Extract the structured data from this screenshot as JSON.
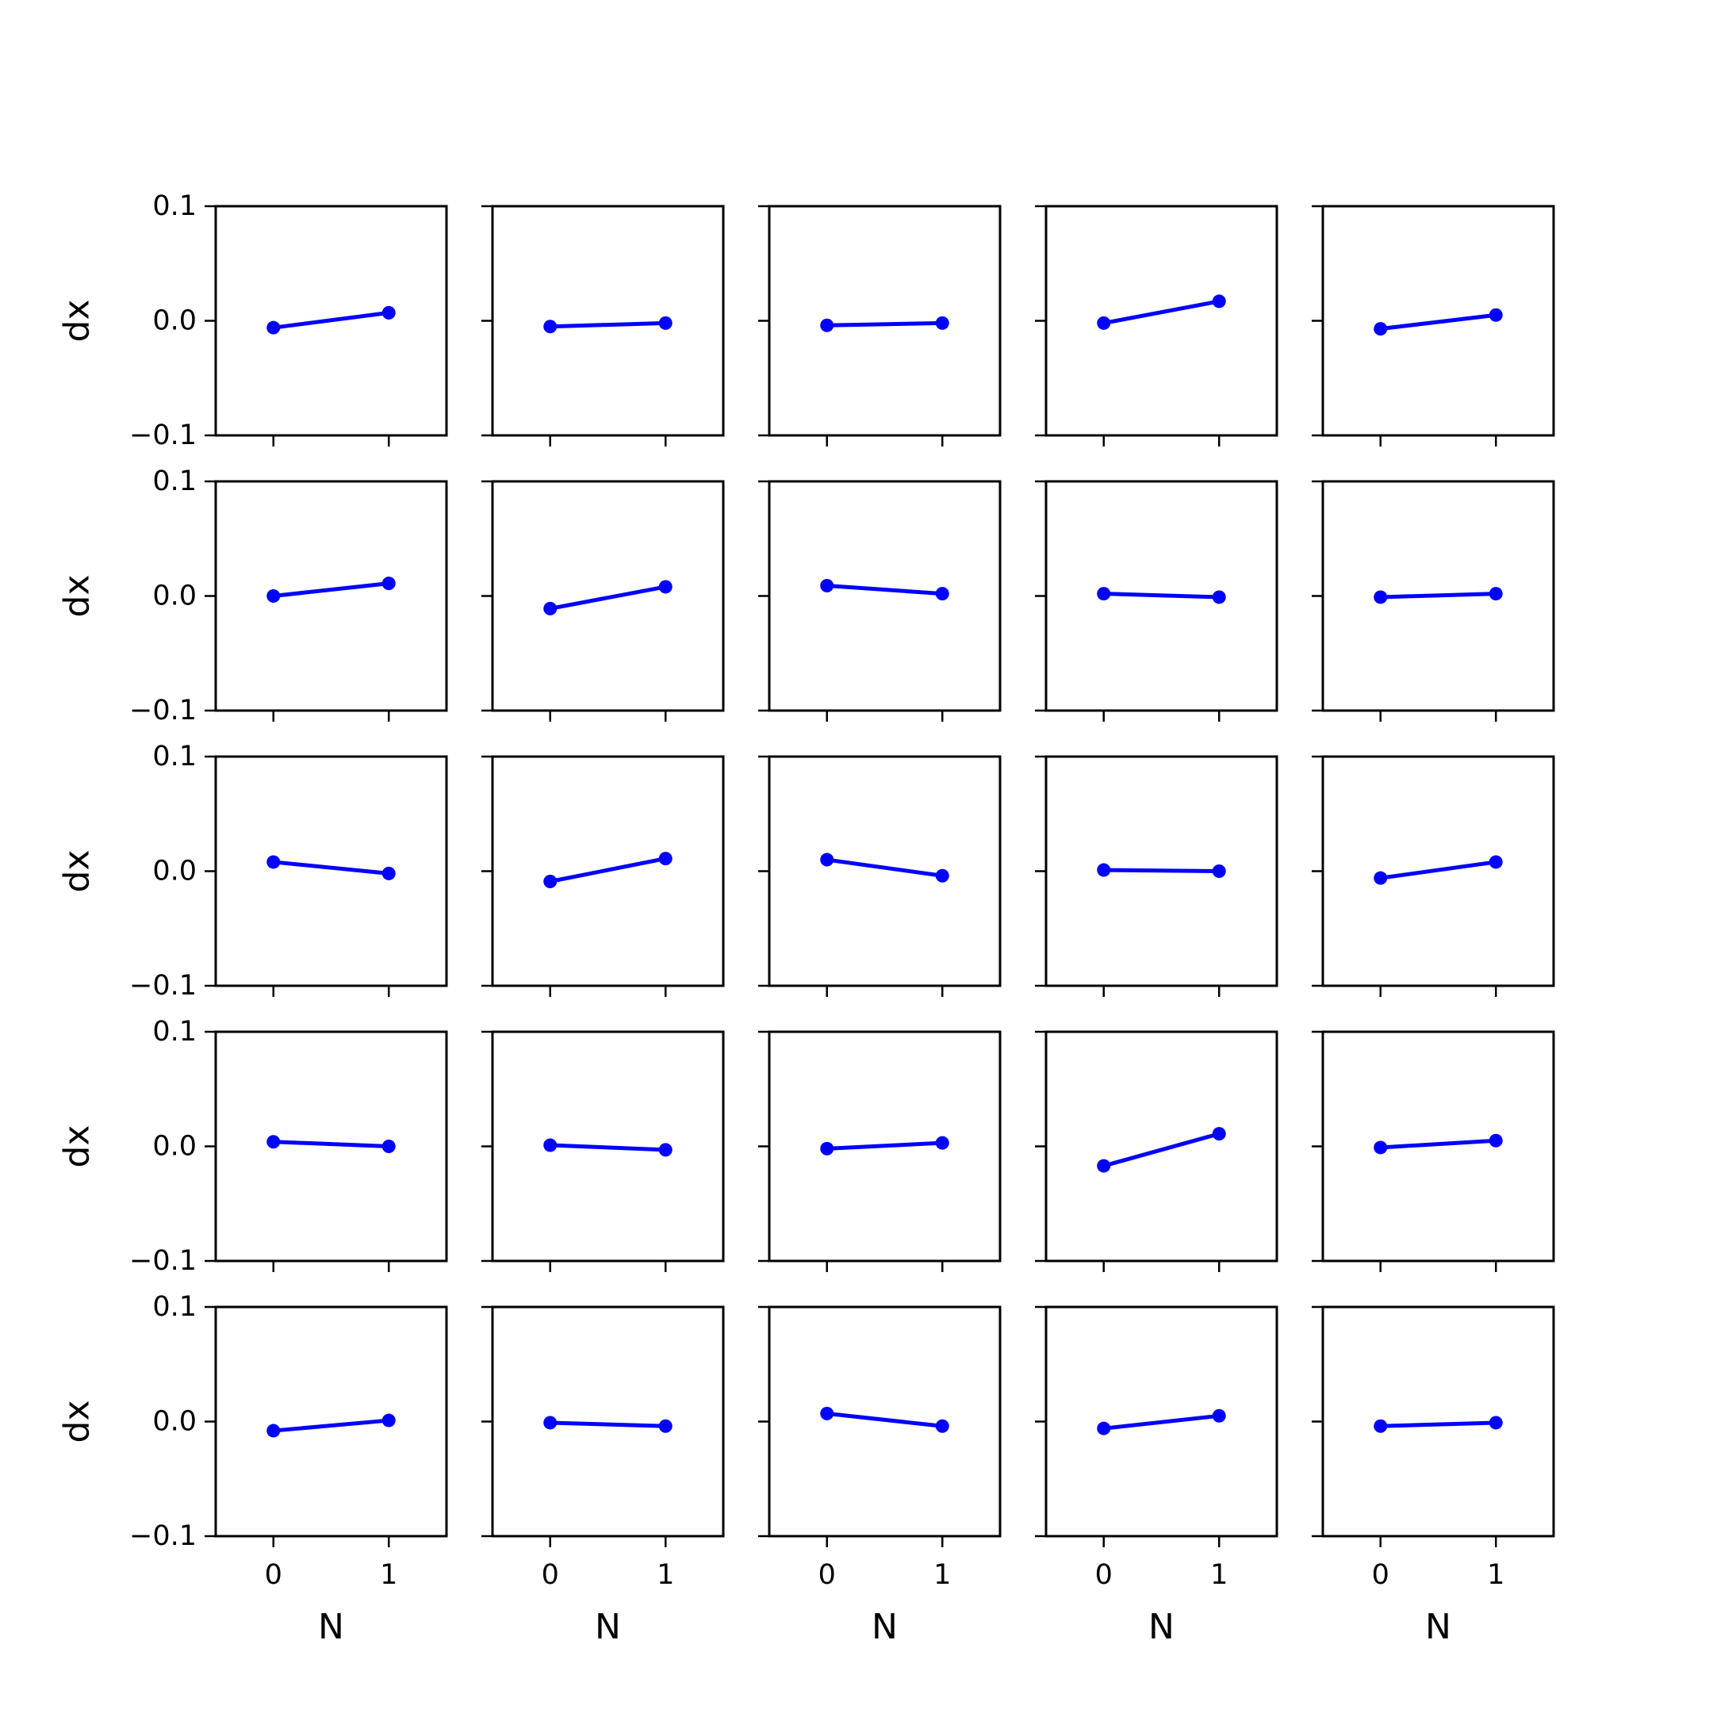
{
  "chart_data": {
    "type": "line",
    "layout": {
      "rows": 5,
      "cols": 5,
      "sharex": true,
      "sharey": true
    },
    "xlabel": "N",
    "ylabel": "dx",
    "xticks": [
      0,
      1
    ],
    "xtick_labels": [
      "0",
      "1"
    ],
    "xlim": [
      -0.5,
      1.5
    ],
    "yticks": [
      -0.1,
      0.0,
      0.1
    ],
    "ytick_labels": [
      "−0.1",
      "0.0",
      "0.1"
    ],
    "ylim": [
      -0.1,
      0.1
    ],
    "grid": false,
    "series_color": "#0000ff",
    "marker": "circle",
    "panels": [
      {
        "x": [
          0,
          1
        ],
        "y": [
          -0.006,
          0.007
        ]
      },
      {
        "x": [
          0,
          1
        ],
        "y": [
          -0.005,
          -0.002
        ]
      },
      {
        "x": [
          0,
          1
        ],
        "y": [
          -0.004,
          -0.002
        ]
      },
      {
        "x": [
          0,
          1
        ],
        "y": [
          -0.002,
          0.017
        ]
      },
      {
        "x": [
          0,
          1
        ],
        "y": [
          -0.007,
          0.005
        ]
      },
      {
        "x": [
          0,
          1
        ],
        "y": [
          0.0,
          0.011
        ]
      },
      {
        "x": [
          0,
          1
        ],
        "y": [
          -0.011,
          0.008
        ]
      },
      {
        "x": [
          0,
          1
        ],
        "y": [
          0.009,
          0.002
        ]
      },
      {
        "x": [
          0,
          1
        ],
        "y": [
          0.002,
          -0.001
        ]
      },
      {
        "x": [
          0,
          1
        ],
        "y": [
          -0.001,
          0.002
        ]
      },
      {
        "x": [
          0,
          1
        ],
        "y": [
          0.008,
          -0.002
        ]
      },
      {
        "x": [
          0,
          1
        ],
        "y": [
          -0.009,
          0.011
        ]
      },
      {
        "x": [
          0,
          1
        ],
        "y": [
          0.01,
          -0.004
        ]
      },
      {
        "x": [
          0,
          1
        ],
        "y": [
          0.001,
          0.0
        ]
      },
      {
        "x": [
          0,
          1
        ],
        "y": [
          -0.006,
          0.008
        ]
      },
      {
        "x": [
          0,
          1
        ],
        "y": [
          0.004,
          0.0
        ]
      },
      {
        "x": [
          0,
          1
        ],
        "y": [
          0.001,
          -0.003
        ]
      },
      {
        "x": [
          0,
          1
        ],
        "y": [
          -0.002,
          0.003
        ]
      },
      {
        "x": [
          0,
          1
        ],
        "y": [
          -0.017,
          0.011
        ]
      },
      {
        "x": [
          0,
          1
        ],
        "y": [
          -0.001,
          0.005
        ]
      },
      {
        "x": [
          0,
          1
        ],
        "y": [
          -0.008,
          0.001
        ]
      },
      {
        "x": [
          0,
          1
        ],
        "y": [
          -0.001,
          -0.004
        ]
      },
      {
        "x": [
          0,
          1
        ],
        "y": [
          0.007,
          -0.004
        ]
      },
      {
        "x": [
          0,
          1
        ],
        "y": [
          -0.006,
          0.005
        ]
      },
      {
        "x": [
          0,
          1
        ],
        "y": [
          -0.004,
          -0.001
        ]
      }
    ]
  }
}
